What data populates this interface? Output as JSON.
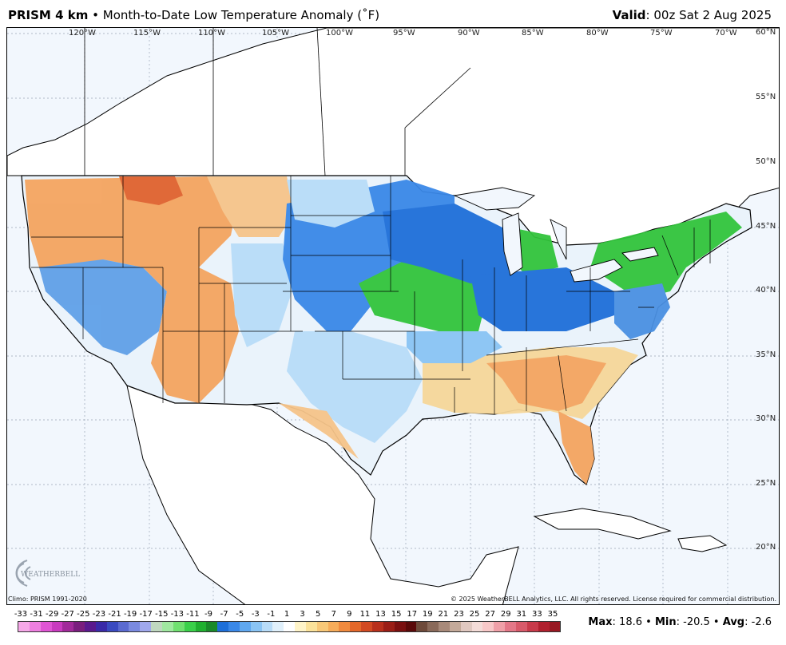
{
  "header": {
    "model": "PRISM 4 km",
    "bullet": "•",
    "product": "Month-to-Date Low Temperature Anomaly (˚F)",
    "valid_label": "Valid",
    "valid_value": ": 00z Sat 2 Aug 2025"
  },
  "map": {
    "longitudes": [
      "120°W",
      "115°W",
      "110°W",
      "105°W",
      "100°W",
      "95°W",
      "90°W",
      "85°W",
      "80°W",
      "75°W",
      "70°W"
    ],
    "latitudes": [
      "60°N",
      "55°N",
      "50°N",
      "45°N",
      "40°N",
      "35°N",
      "30°N",
      "25°N",
      "20°N"
    ],
    "colors": {
      "ocean": "#f2f7fd",
      "land_outside": "#ffffff",
      "warm": "#f4a460",
      "hot": "#d9532b",
      "cool": "#4a90e2",
      "cold": "#1e6fd9",
      "green": "#32c43c",
      "neutral": "#eaf3fb",
      "tan": "#f6d79a"
    }
  },
  "credits": {
    "climo": "Climo: PRISM 1991-2020",
    "copyright": "© 2025 WeatherBELL Analytics, LLC. All rights reserved. License required for commercial distribution.",
    "logo_text": "WEATHERBELL"
  },
  "legend": {
    "ticks": [
      "-33",
      "-31",
      "-29",
      "-27",
      "-25",
      "-23",
      "-21",
      "-19",
      "-17",
      "-15",
      "-13",
      "-11",
      "-9",
      "-7",
      "-5",
      "-3",
      "-1",
      "1",
      "3",
      "5",
      "7",
      "9",
      "11",
      "13",
      "15",
      "17",
      "19",
      "21",
      "23",
      "25",
      "27",
      "29",
      "31",
      "33",
      "35"
    ],
    "swatches": [
      "#f6a8e8",
      "#ee7fe0",
      "#e055d4",
      "#c93bbf",
      "#a12a9a",
      "#7a1e7e",
      "#5a1a8e",
      "#3a2aa8",
      "#3a4ac0",
      "#5a6ad0",
      "#7a8ae0",
      "#a0a8ec",
      "#c0d8c0",
      "#a0e8a0",
      "#70e070",
      "#3ad04a",
      "#20b030",
      "#1a8a2a",
      "#1e6fd9",
      "#3a88e8",
      "#60a8f0",
      "#8ac4f4",
      "#b8dcf8",
      "#e0f0fb",
      "#ffffff",
      "#fff4c8",
      "#fbe29a",
      "#f8c878",
      "#f6ac5a",
      "#f08a3e",
      "#e4682a",
      "#d24a22",
      "#b8301c",
      "#9a1e16",
      "#7a1010",
      "#5a0a0a",
      "#6e4a3a",
      "#8a6a5a",
      "#a88a7a",
      "#c4aa9a",
      "#e0c8c0",
      "#f4dcd8",
      "#f8c8c8",
      "#f0a0a8",
      "#e47888",
      "#d85a6a",
      "#c83a4a",
      "#b0202e",
      "#981822"
    ]
  },
  "stats": {
    "max_label": "Max",
    "max_value": ": 18.6",
    "min_label": "Min",
    "min_value": ": -20.5",
    "avg_label": "Avg",
    "avg_value": ": -2.6",
    "sep": "•"
  }
}
